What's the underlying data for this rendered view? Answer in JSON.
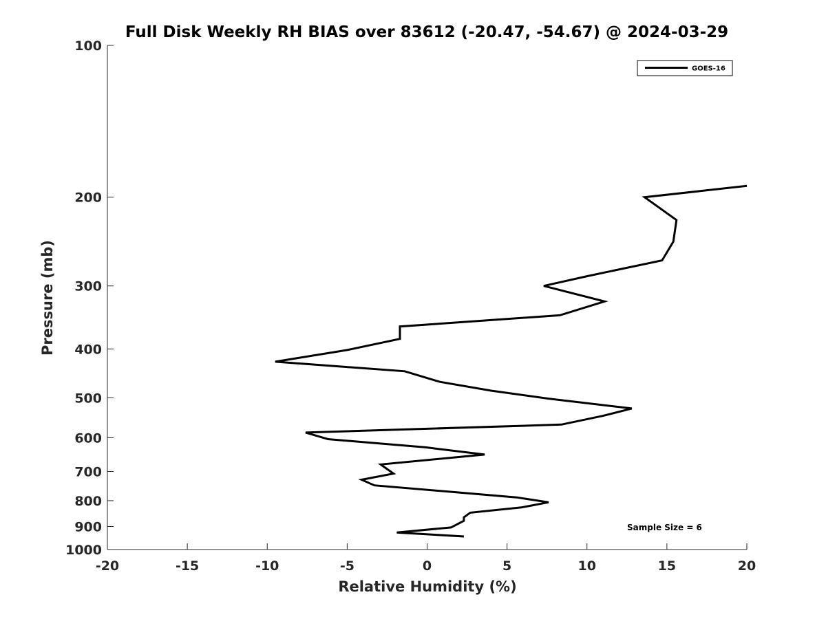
{
  "chart_data": {
    "type": "line",
    "title": "Full Disk Weekly RH BIAS over 83612 (-20.47, -54.67) @ 2024-03-29",
    "xlabel": "Relative Humidity (%)",
    "ylabel": "Pressure (mb)",
    "xlim": [
      -20,
      20
    ],
    "ylim": [
      100,
      1000
    ],
    "y_scale": "log",
    "y_reversed": true,
    "x_ticks": [
      -20,
      -15,
      -10,
      -5,
      0,
      5,
      10,
      15,
      20
    ],
    "y_ticks": [
      100,
      200,
      300,
      400,
      500,
      600,
      700,
      800,
      900,
      1000
    ],
    "grid": false,
    "legend_position": "top-right",
    "series": [
      {
        "name": "GOES-16",
        "color": "#000000",
        "points": [
          {
            "x": 20.0,
            "y": 190
          },
          {
            "x": 13.6,
            "y": 200
          },
          {
            "x": 15.6,
            "y": 222
          },
          {
            "x": 15.4,
            "y": 245
          },
          {
            "x": 14.7,
            "y": 267
          },
          {
            "x": 10.0,
            "y": 287
          },
          {
            "x": 7.3,
            "y": 300
          },
          {
            "x": 11.1,
            "y": 322
          },
          {
            "x": 8.3,
            "y": 343
          },
          {
            "x": -1.7,
            "y": 361
          },
          {
            "x": -1.7,
            "y": 382
          },
          {
            "x": -5.0,
            "y": 402
          },
          {
            "x": -9.5,
            "y": 424
          },
          {
            "x": -1.4,
            "y": 443
          },
          {
            "x": 0.8,
            "y": 465
          },
          {
            "x": 4.0,
            "y": 484
          },
          {
            "x": 7.6,
            "y": 502
          },
          {
            "x": 12.8,
            "y": 525
          },
          {
            "x": 11.0,
            "y": 543
          },
          {
            "x": 8.4,
            "y": 565
          },
          {
            "x": -7.6,
            "y": 586
          },
          {
            "x": -6.2,
            "y": 604
          },
          {
            "x": -0.1,
            "y": 627
          },
          {
            "x": 3.6,
            "y": 648
          },
          {
            "x": -2.9,
            "y": 678
          },
          {
            "x": -2.1,
            "y": 707
          },
          {
            "x": -4.1,
            "y": 727
          },
          {
            "x": -3.3,
            "y": 746
          },
          {
            "x": 5.6,
            "y": 788
          },
          {
            "x": 7.6,
            "y": 806
          },
          {
            "x": 5.9,
            "y": 825
          },
          {
            "x": 2.7,
            "y": 845
          },
          {
            "x": 2.3,
            "y": 863
          },
          {
            "x": 2.3,
            "y": 877
          },
          {
            "x": 1.5,
            "y": 904
          },
          {
            "x": -1.9,
            "y": 925
          },
          {
            "x": 2.3,
            "y": 942
          }
        ]
      }
    ],
    "annotations": [
      "Sample Size = 6"
    ]
  },
  "legend": {
    "entries": [
      {
        "label": "GOES-16",
        "color": "#000000"
      }
    ]
  }
}
